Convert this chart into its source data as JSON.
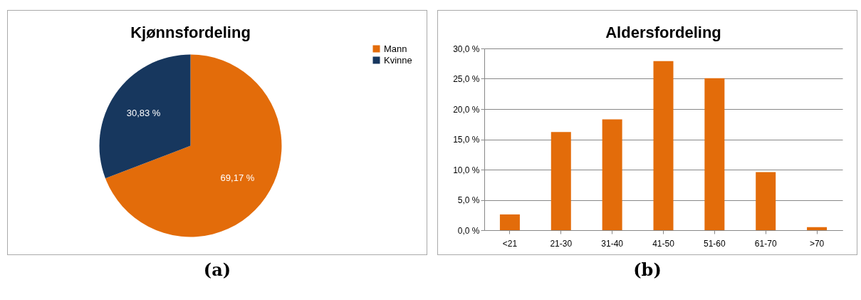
{
  "chart_data": [
    {
      "type": "pie",
      "title": "Kjønnsfordeling",
      "categories": [
        "Mann",
        "Kvinne"
      ],
      "values": [
        69.17,
        30.83
      ],
      "colors": [
        "#e36c0a",
        "#17375e"
      ],
      "value_labels": [
        "69,17 %",
        "30,83 %"
      ],
      "legend": "right",
      "annotations": [
        "(a)"
      ]
    },
    {
      "type": "bar",
      "title": "Aldersfordeling",
      "categories": [
        "<21",
        "21-30",
        "31-40",
        "41-50",
        "51-60",
        "61-70",
        ">70"
      ],
      "values": [
        2.6,
        16.2,
        18.3,
        27.9,
        25.1,
        9.6,
        0.5
      ],
      "color": "#e36c0a",
      "ylim": [
        0,
        30
      ],
      "yticks": [
        {
          "value": 0,
          "label": "0,0 %"
        },
        {
          "value": 5,
          "label": "5,0 %"
        },
        {
          "value": 10,
          "label": "10,0 %"
        },
        {
          "value": 15,
          "label": "15,0 %"
        },
        {
          "value": 20,
          "label": "20,0 %"
        },
        {
          "value": 25,
          "label": "25,0 %"
        },
        {
          "value": 30,
          "label": "30,0 %"
        }
      ],
      "grid": "y",
      "annotations": [
        "(b)"
      ]
    }
  ]
}
